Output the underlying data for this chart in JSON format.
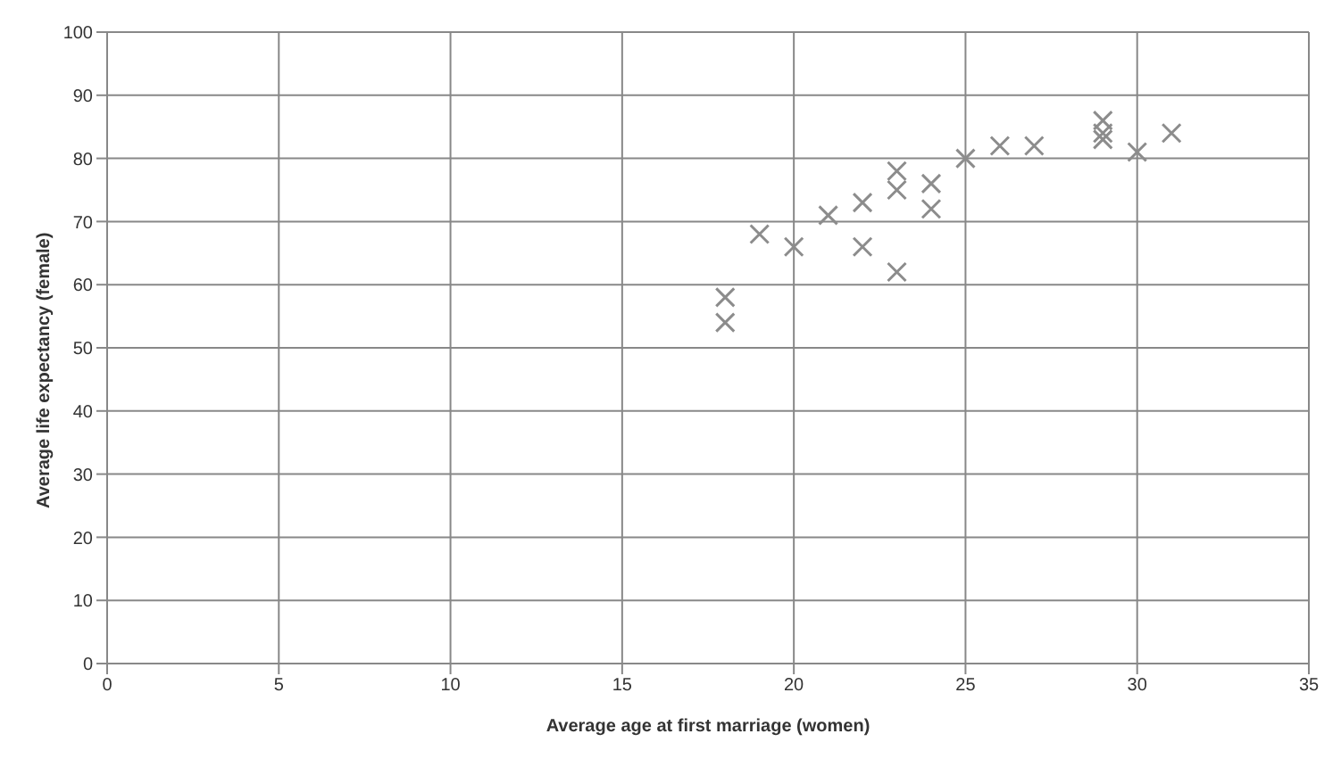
{
  "chart_data": {
    "type": "scatter",
    "xlabel": "Average age at first marriage (women)",
    "ylabel": "Average life expectancy (female)",
    "x": [
      18,
      18,
      19,
      20,
      21,
      22,
      22,
      23,
      23,
      23,
      24,
      24,
      25,
      26,
      27,
      29,
      29,
      29,
      30,
      31
    ],
    "series": [
      {
        "color": "#8c8c8c",
        "values": [
          58,
          54,
          68,
          66,
          71,
          73,
          66,
          78,
          75,
          62,
          76,
          72,
          80,
          82,
          82,
          86,
          84,
          83,
          81,
          84
        ]
      }
    ],
    "xlim": [
      0,
      35
    ],
    "xticks": [
      0,
      5,
      10,
      15,
      20,
      25,
      30,
      35
    ],
    "ylim": [
      0,
      100
    ],
    "yticks": [
      0,
      10,
      20,
      30,
      40,
      50,
      60,
      70,
      80,
      90,
      100
    ],
    "grid": true,
    "marker": "cross",
    "legend": false
  }
}
